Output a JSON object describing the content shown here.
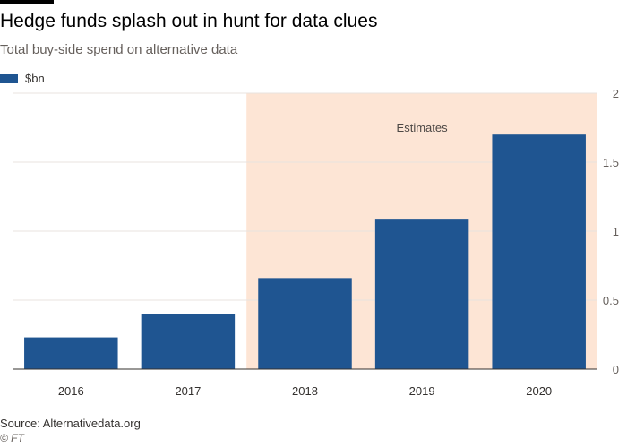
{
  "header": {
    "title": "Hedge funds splash out in hunt for data clues",
    "subtitle": "Total buy-side spend on alternative data"
  },
  "footer": {
    "source": "Source: Alternativedata.org",
    "copyright": "© FT"
  },
  "colors": {
    "bar": "#1f5591",
    "estimates_band": "#fde5d5",
    "grid": "#e8e3df",
    "axis": "#33302e"
  },
  "chart_data": {
    "type": "bar",
    "title": "Hedge funds splash out in hunt for data clues",
    "subtitle": "Total buy-side spend on alternative data",
    "categories": [
      "2016",
      "2017",
      "2018",
      "2019",
      "2020"
    ],
    "series": [
      {
        "name": "$bn",
        "values": [
          0.23,
          0.4,
          0.66,
          1.09,
          1.7
        ]
      }
    ],
    "ylim": [
      0,
      2
    ],
    "yticks": [
      0,
      0.5,
      1,
      1.5,
      2
    ],
    "ytick_labels": [
      "0",
      "0.5",
      "1",
      "1.5",
      "2"
    ],
    "y_axis_side": "right",
    "grid": true,
    "legend_position": "top-left",
    "annotations": [
      {
        "text": "Estimates",
        "x_from": "2018",
        "x_to": "2020"
      }
    ]
  }
}
